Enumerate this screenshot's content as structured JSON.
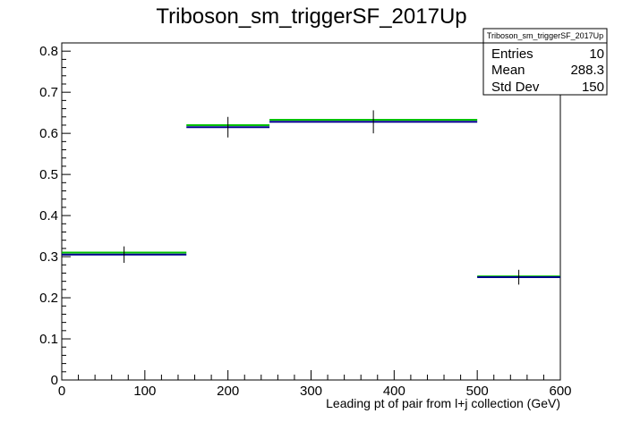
{
  "chart_data": {
    "type": "histogram",
    "title": "Triboson_sm_triggerSF_2017Up",
    "xlabel": "Leading pt of pair from l+j collection (GeV)",
    "ylabel": "",
    "xlim": [
      0,
      600
    ],
    "ylim": [
      0,
      0.82
    ],
    "x_ticks": [
      0,
      100,
      200,
      300,
      400,
      500,
      600
    ],
    "x_tick_labels": [
      "0",
      "100",
      "200",
      "300",
      "400",
      "500",
      "600"
    ],
    "y_ticks": [
      0,
      0.1,
      0.2,
      0.3,
      0.4,
      0.5,
      0.6,
      0.7,
      0.8
    ],
    "y_tick_labels": [
      "0",
      "0.1",
      "0.2",
      "0.3",
      "0.4",
      "0.5",
      "0.6",
      "0.7",
      "0.8"
    ],
    "grid": false,
    "series": [
      {
        "color": "#00008b",
        "bins": [
          {
            "xlow": 0,
            "xhigh": 150,
            "value": 0.305,
            "error": 0.02
          },
          {
            "xlow": 150,
            "xhigh": 250,
            "value": 0.615,
            "error": 0.025
          },
          {
            "xlow": 250,
            "xhigh": 500,
            "value": 0.628,
            "error": 0.028
          },
          {
            "xlow": 500,
            "xhigh": 600,
            "value": 0.25,
            "error": 0.018
          }
        ]
      },
      {
        "color": "#00c000",
        "bins": [
          {
            "xlow": 0,
            "xhigh": 150,
            "value": 0.31
          },
          {
            "xlow": 150,
            "xhigh": 250,
            "value": 0.62
          },
          {
            "xlow": 250,
            "xhigh": 500,
            "value": 0.633
          },
          {
            "xlow": 500,
            "xhigh": 600,
            "value": 0.252
          }
        ]
      }
    ],
    "stats_box": {
      "title": "Triboson_sm_triggerSF_2017Up",
      "position": "top-right",
      "rows": [
        {
          "label": "Entries",
          "value": "10"
        },
        {
          "label": "Mean",
          "value": "288.3"
        },
        {
          "label": "Std Dev",
          "value": "150"
        }
      ]
    }
  }
}
